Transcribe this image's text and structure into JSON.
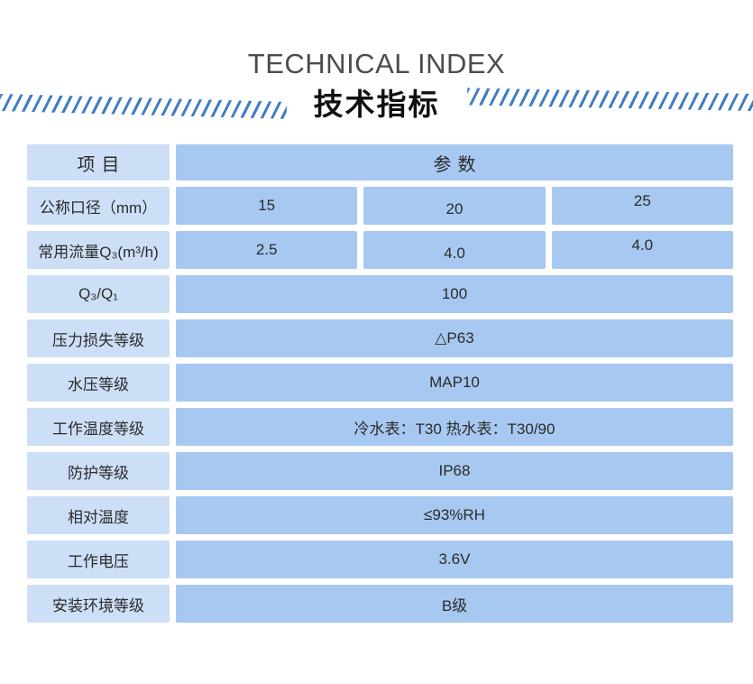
{
  "header": {
    "title_en": "TECHNICAL INDEX",
    "title_zh": "技术指标"
  },
  "table": {
    "columns": {
      "item": "项目",
      "param": "参数"
    },
    "rows": [
      {
        "label": "公称口径（mm）",
        "values": [
          "15",
          "20",
          "25"
        ]
      },
      {
        "label": "常用流量Q₃(m³/h)",
        "values": [
          "2.5",
          "4.0",
          "4.0"
        ]
      },
      {
        "label": "Q₃/Q₁",
        "value": "100"
      },
      {
        "label": "压力损失等级",
        "value": "△P63"
      },
      {
        "label": "水压等级",
        "value": "MAP10"
      },
      {
        "label": "工作温度等级",
        "value": "冷水表：T30 热水表：T30/90"
      },
      {
        "label": "防护等级",
        "value": "IP68"
      },
      {
        "label": "相对温度",
        "value": "≤93%RH"
      },
      {
        "label": "工作电压",
        "value": "3.6V"
      },
      {
        "label": "安装环境等级",
        "value": "B级"
      }
    ]
  },
  "colors": {
    "label_cell_bg": "#cddff6",
    "value_cell_bg": "#a7c8f0",
    "hatch_stripe": "#3f7dc4",
    "title_en_color": "#4b4c4e",
    "title_zh_color": "#111111",
    "cell_text_color": "#2b2b2b"
  }
}
